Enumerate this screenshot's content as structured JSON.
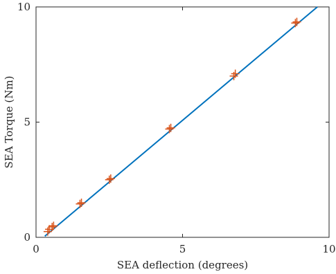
{
  "chart_data": {
    "type": "scatter",
    "title": "",
    "xlabel": "SEA deflection (degrees)",
    "ylabel": "SEA Torque (Nm)",
    "xlim": [
      0,
      10
    ],
    "ylim": [
      0,
      10
    ],
    "xticks": [
      0,
      5,
      10
    ],
    "yticks": [
      0,
      5,
      10
    ],
    "xtick_labels": [
      "0",
      "5",
      "10"
    ],
    "ytick_labels": [
      "0",
      "5",
      "10"
    ],
    "grid": false,
    "legend": "none",
    "series": [
      {
        "kind": "line",
        "color": "#0072BD",
        "x": [
          0.3,
          9.6
        ],
        "y": [
          0.05,
          10.0
        ]
      },
      {
        "kind": "markers",
        "marker": "plus",
        "color": "#D95319",
        "x": [
          0.4,
          0.45,
          0.55,
          0.6,
          1.5,
          1.55,
          2.5,
          2.55,
          4.55,
          4.6,
          6.75,
          6.8,
          8.85,
          8.9
        ],
        "y": [
          0.25,
          0.35,
          0.45,
          0.5,
          1.45,
          1.5,
          2.5,
          2.55,
          4.7,
          4.75,
          7.0,
          7.1,
          9.3,
          9.35
        ]
      }
    ]
  }
}
